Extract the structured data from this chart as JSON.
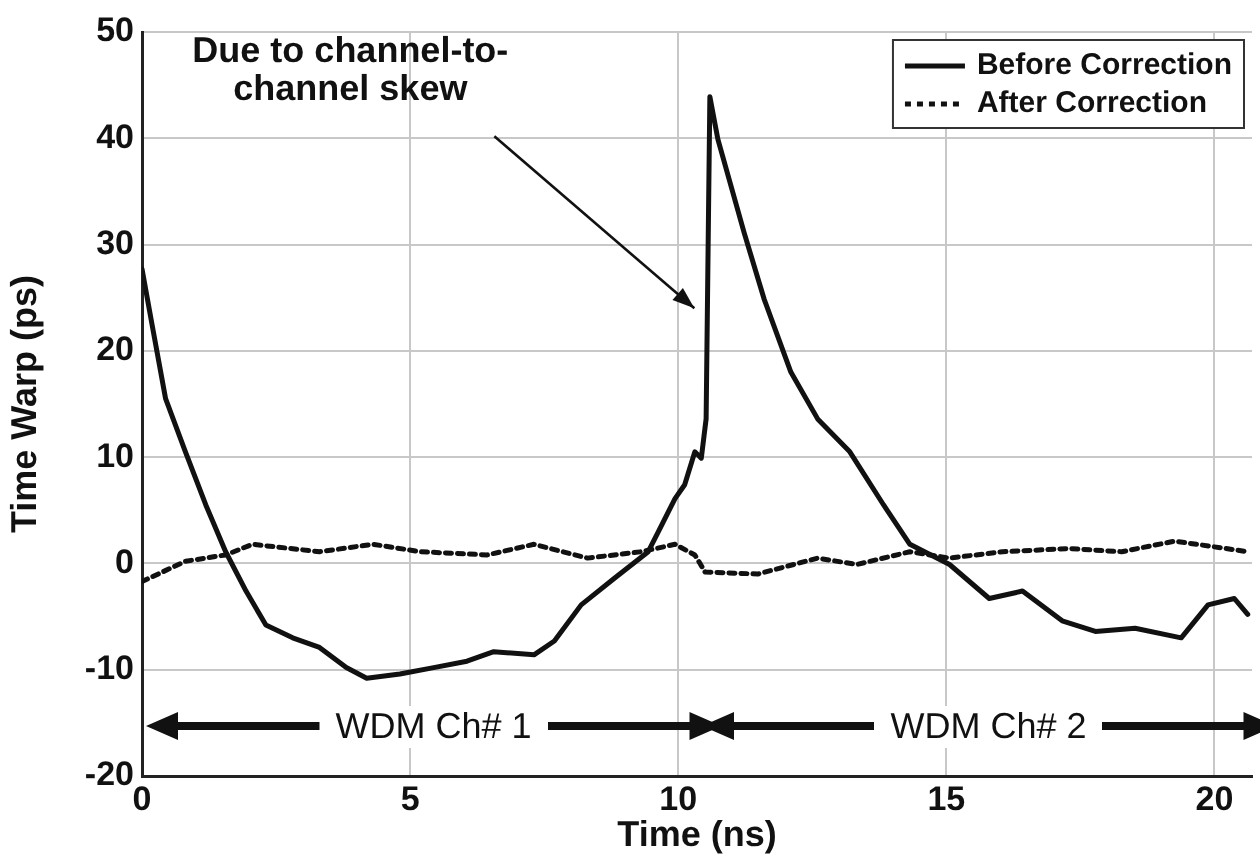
{
  "chart_data": {
    "type": "line",
    "xlabel": "Time (ns)",
    "ylabel": "Time Warp (ps)",
    "xlim": [
      0,
      20.7
    ],
    "xticks": [
      0,
      5,
      10,
      15,
      20
    ],
    "ylim": [
      -20,
      50
    ],
    "yticks": [
      -20,
      -10,
      0,
      10,
      20,
      30,
      40,
      50
    ],
    "grid": true,
    "legend": "top right",
    "marker": "none",
    "series": [
      {
        "name": "Before Correction",
        "color": "#111111",
        "line_style": "solid",
        "x": [
          0,
          0.19,
          0.44,
          0.81,
          1.19,
          1.56,
          1.94,
          2.31,
          2.81,
          3.31,
          3.81,
          4.19,
          4.81,
          5.44,
          6.06,
          6.56,
          7.31,
          7.69,
          8.19,
          8.81,
          9.44,
          9.63,
          9.94,
          10.12,
          10.31,
          10.43,
          10.52,
          10.59,
          10.74,
          11.23,
          11.6,
          12.1,
          12.6,
          13.2,
          13.83,
          14.32,
          15.06,
          15.8,
          16.42,
          17.16,
          17.78,
          18.52,
          19.38,
          19.88,
          20.37,
          20.62
        ],
        "values": [
          27.7,
          22.4,
          15.5,
          10.5,
          5.5,
          1.1,
          -2.6,
          -5.8,
          -7,
          -7.9,
          -9.8,
          -10.8,
          -10.4,
          -9.8,
          -9.2,
          -8.3,
          -8.6,
          -7.3,
          -3.9,
          -1.4,
          1.1,
          3,
          6.1,
          7.4,
          10.5,
          9.9,
          13.6,
          43.9,
          39.9,
          31.1,
          24.9,
          18,
          13.6,
          10.5,
          5.5,
          1.8,
          -0.1,
          -3.3,
          -2.6,
          -5.4,
          -6.4,
          -6.1,
          -7,
          -3.9,
          -3.3,
          -4.8
        ]
      },
      {
        "name": "After Correction",
        "color": "#111111",
        "line_style": "dotted",
        "x": [
          0,
          0.81,
          1.56,
          2.06,
          3.31,
          4.31,
          5.19,
          6.44,
          7.31,
          8.31,
          9.31,
          9.94,
          10.31,
          10.5,
          11.48,
          12.6,
          13.33,
          14.32,
          15.06,
          16.05,
          17.28,
          18.27,
          19.26,
          20.62
        ],
        "values": [
          -1.7,
          0.2,
          0.8,
          1.8,
          1.1,
          1.8,
          1.1,
          0.8,
          1.8,
          0.5,
          1.1,
          1.8,
          0.8,
          -0.8,
          -1,
          0.5,
          -0.1,
          1.1,
          0.5,
          1.1,
          1.4,
          1.1,
          2.1,
          1.1
        ]
      }
    ],
    "annotations": [
      {
        "text": "Due to channel-to-channel skew",
        "x": 10.45,
        "y": 24
      },
      "WDM Ch# 1",
      "WDM Ch# 2"
    ]
  }
}
